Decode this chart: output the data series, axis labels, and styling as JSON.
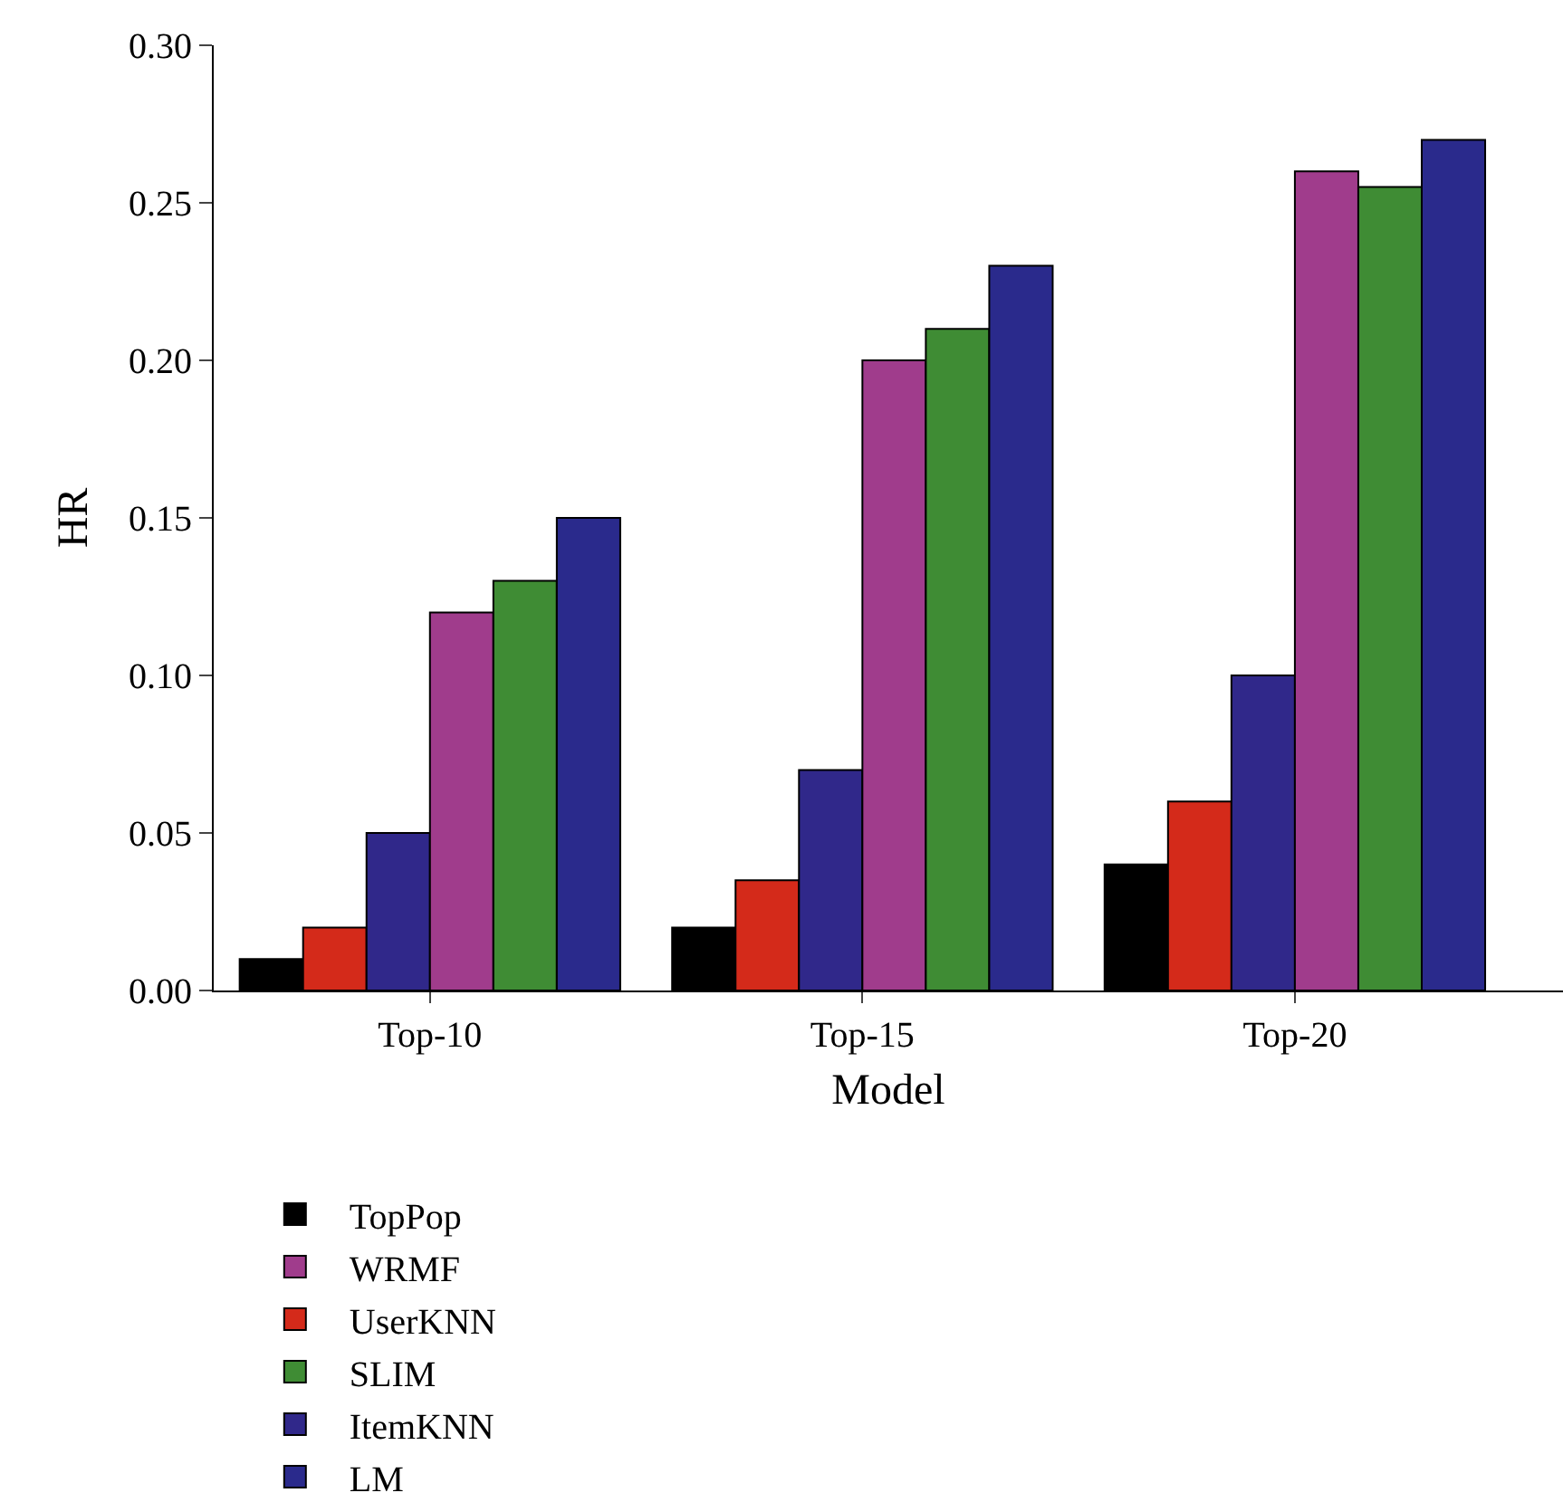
{
  "chart_data": {
    "type": "bar",
    "xlabel": "Model",
    "ylabel": "HR",
    "categories": [
      "Top-10",
      "Top-15",
      "Top-20"
    ],
    "series": [
      {
        "name": "TopPop",
        "color": "#000000",
        "values": [
          0.01,
          0.02,
          0.04
        ]
      },
      {
        "name": "UserKNN",
        "color": "#d42a1a",
        "values": [
          0.02,
          0.035,
          0.06
        ]
      },
      {
        "name": "ItemKNN",
        "color": "#30288a",
        "values": [
          0.05,
          0.07,
          0.1
        ]
      },
      {
        "name": "WRMF",
        "color": "#a03c8c",
        "values": [
          0.12,
          0.2,
          0.26
        ]
      },
      {
        "name": "SLIM",
        "color": "#3f8c34",
        "values": [
          0.13,
          0.21,
          0.255
        ]
      },
      {
        "name": "LM",
        "color": "#2a2a8c",
        "values": [
          0.15,
          0.23,
          0.27
        ]
      }
    ],
    "ylim": [
      0,
      0.3
    ],
    "yticks": [
      {
        "value": 0,
        "label": "0.00"
      },
      {
        "value": 0.05,
        "label": "0.05"
      },
      {
        "value": 0.1,
        "label": "0.10"
      },
      {
        "value": 0.15,
        "label": "0.15"
      },
      {
        "value": 0.2,
        "label": "0.20"
      },
      {
        "value": 0.25,
        "label": "0.25"
      },
      {
        "value": 0.3,
        "label": "0.30"
      }
    ],
    "grid": false,
    "legend": "bottom"
  }
}
